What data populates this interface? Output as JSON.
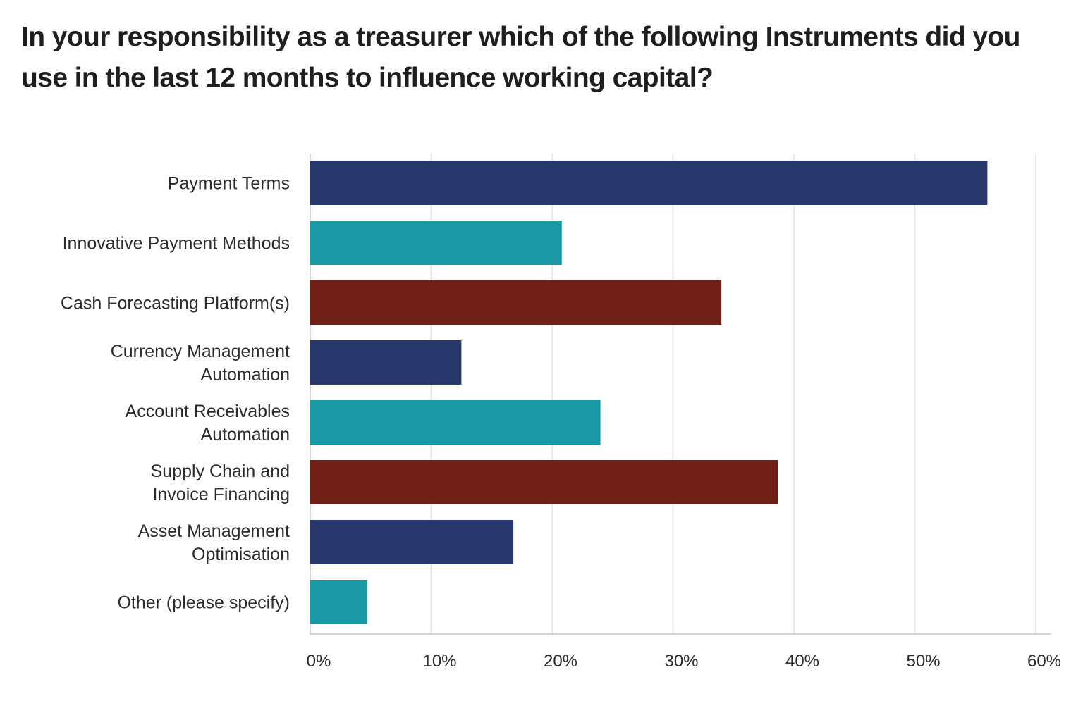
{
  "chart_data": {
    "type": "bar",
    "orientation": "horizontal",
    "title": "In your responsibility as a treasurer which of the following Instruments did you use in the last 12 months to influence working capital?",
    "categories": [
      [
        "Payment Terms"
      ],
      [
        "Innovative Payment Methods"
      ],
      [
        "Cash Forecasting Platform(s)"
      ],
      [
        "Currency Management",
        "Automation"
      ],
      [
        "Account Receivables",
        "Automation"
      ],
      [
        "Supply Chain and",
        "Invoice Financing"
      ],
      [
        "Asset Management",
        "Optimisation"
      ],
      [
        "Other (please specify)"
      ]
    ],
    "values": [
      56,
      20.8,
      34,
      12.5,
      24,
      38.7,
      16.8,
      4.7
    ],
    "bar_colors": [
      "#27366b",
      "#1a99a4",
      "#701f16",
      "#27366b",
      "#1a99a4",
      "#701f16",
      "#27366b",
      "#1a99a4"
    ],
    "xlim": [
      0,
      60
    ],
    "xticks": [
      0,
      10,
      20,
      30,
      40,
      50,
      60
    ],
    "xtick_labels": [
      "0%",
      "10%",
      "20%",
      "30%",
      "40%",
      "50%",
      "60%"
    ],
    "grid": "vertical",
    "gridline_color": "#e3e3e3",
    "axis_color": "#c9c9c9",
    "xlabel": "",
    "ylabel": ""
  }
}
